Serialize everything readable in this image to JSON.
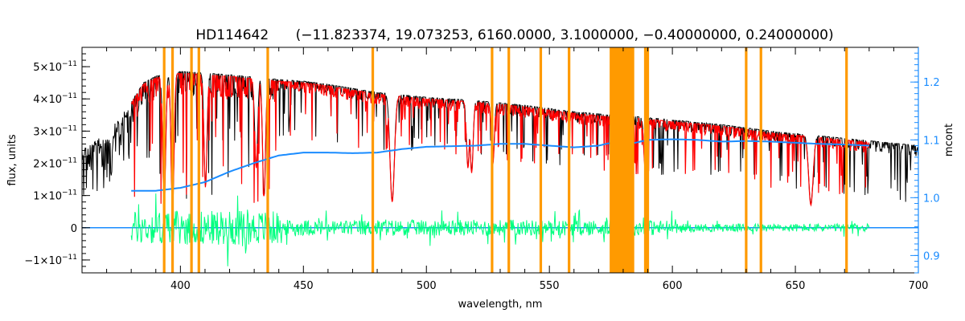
{
  "chart_data": {
    "type": "line",
    "title_star": "HD114642",
    "title_params": "(−11.823374, 19.073253, 6160.0000, 3.1000000, −0.40000000, 0.24000000)",
    "xlabel": "wavelength, nm",
    "ylabel": "flux, units",
    "y2label": "mcont",
    "xlim": [
      360,
      700
    ],
    "ylim": [
      -1.4e-11,
      5.6e-11
    ],
    "y2lim": [
      0.87,
      1.26
    ],
    "xticks": [
      400,
      450,
      500,
      550,
      600,
      650,
      700
    ],
    "yticks": [
      {
        "value": 5e-11,
        "mant": "5×10",
        "exp": "−11"
      },
      {
        "value": 4e-11,
        "mant": "4×10",
        "exp": "−11"
      },
      {
        "value": 3e-11,
        "mant": "3×10",
        "exp": "−11"
      },
      {
        "value": 2e-11,
        "mant": "2×10",
        "exp": "−11"
      },
      {
        "value": 1e-11,
        "mant": "1×10",
        "exp": "−11"
      },
      {
        "value": 0,
        "mant": "0",
        "exp": ""
      },
      {
        "value": -1e-11,
        "mant": "−1×10",
        "exp": "−11"
      }
    ],
    "y2ticks": [
      0.9,
      1.0,
      1.1,
      1.2
    ],
    "masked_lines_nm": [
      393.4,
      396.8,
      404.5,
      407.5,
      435.5,
      478.2,
      526.7,
      533.5,
      546.5,
      558.0,
      589.0,
      590.0,
      630.0,
      636.0,
      670.8
    ],
    "masked_band_nm": [
      574.5,
      584.5
    ],
    "continuum_mcont": {
      "x": [
        380,
        390,
        400,
        410,
        420,
        430,
        440,
        450,
        460,
        470,
        480,
        490,
        500,
        510,
        520,
        530,
        540,
        550,
        560,
        570,
        574,
        585,
        590,
        600,
        610,
        620,
        630,
        640,
        650,
        660,
        670,
        680
      ],
      "y": [
        1.012,
        1.012,
        1.017,
        1.027,
        1.045,
        1.06,
        1.073,
        1.078,
        1.078,
        1.077,
        1.078,
        1.084,
        1.088,
        1.089,
        1.09,
        1.093,
        1.093,
        1.09,
        1.087,
        1.09,
        1.094,
        1.095,
        1.1,
        1.101,
        1.1,
        1.097,
        1.098,
        1.097,
        1.095,
        1.093,
        1.092,
        1.09
      ]
    },
    "observed_envelope": {
      "x": [
        360,
        370,
        375,
        380,
        385,
        390,
        400,
        410,
        420,
        440,
        450,
        460,
        480,
        500,
        520,
        540,
        560,
        575,
        585,
        600,
        620,
        640,
        660,
        680,
        700
      ],
      "y": [
        2.5e-11,
        2.9e-11,
        3.4e-11,
        3.9e-11,
        4.5e-11,
        4.7e-11,
        4.85e-11,
        4.8e-11,
        4.75e-11,
        4.6e-11,
        4.55e-11,
        4.45e-11,
        4.2e-11,
        4.05e-11,
        3.95e-11,
        3.8e-11,
        3.6e-11,
        3.5e-11,
        3.45e-11,
        3.35e-11,
        3.2e-11,
        3e-11,
        2.85e-11,
        2.7e-11,
        2.55e-11
      ]
    },
    "deep_absorption_lines_nm": [
      {
        "x": 393.4,
        "min": 8e-12
      },
      {
        "x": 396.8,
        "min": 6e-12
      },
      {
        "x": 410.2,
        "min": 1.3e-11
      },
      {
        "x": 430.8,
        "min": 1.9e-11
      },
      {
        "x": 434.0,
        "min": 1e-11
      },
      {
        "x": 486.1,
        "min": 8.5e-12
      },
      {
        "x": 516.9,
        "min": 1.9e-11
      },
      {
        "x": 518.4,
        "min": 1.75e-11
      },
      {
        "x": 527.0,
        "min": 2e-11
      },
      {
        "x": 589.0,
        "min": 1.8e-11
      },
      {
        "x": 656.3,
        "min": 7.5e-12
      }
    ],
    "series": [
      {
        "key": "observed",
        "color": "#000000"
      },
      {
        "key": "model",
        "color": "#ff0000"
      },
      {
        "key": "residuals",
        "color": "#00ff7f"
      },
      {
        "key": "continuum",
        "color": "#1a8cff"
      },
      {
        "key": "masked",
        "color": "#ff9a00"
      }
    ]
  }
}
